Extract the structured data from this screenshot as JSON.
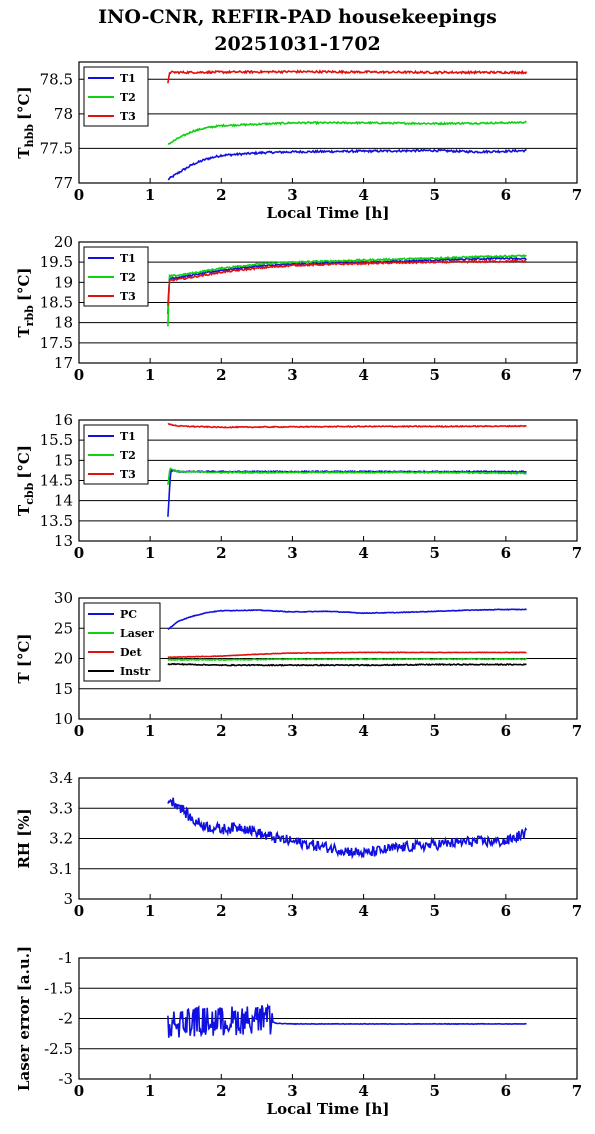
{
  "title": {
    "line1": "INO-CNR, REFIR-PAD housekeepings",
    "line2": "20251031-1702"
  },
  "colors": {
    "blue": "#1010e0",
    "green": "#10d010",
    "red": "#e01010",
    "black": "#000000"
  },
  "chart_data": [
    {
      "type": "line",
      "ylabel_main": "T",
      "ylabel_sub": "hbb",
      "ylabel_unit": "[°C]",
      "xlabel": "Local Time [h]",
      "xlim": [
        0,
        7
      ],
      "ylim": [
        77,
        78.75
      ],
      "xticks": [
        "0",
        "1",
        "2",
        "3",
        "4",
        "5",
        "6",
        "7"
      ],
      "yticks": [
        {
          "v": 77,
          "label": "77"
        },
        {
          "v": 77.5,
          "label": "77.5"
        },
        {
          "v": 78,
          "label": "78"
        },
        {
          "v": 78.5,
          "label": "78.5"
        }
      ],
      "legend": "top-left",
      "series": [
        {
          "name": "T1",
          "color": "blue",
          "noise": 0.015,
          "points": [
            [
              1.25,
              77.05
            ],
            [
              1.4,
              77.15
            ],
            [
              1.6,
              77.27
            ],
            [
              1.8,
              77.35
            ],
            [
              2.0,
              77.4
            ],
            [
              2.3,
              77.42
            ],
            [
              2.6,
              77.44
            ],
            [
              3.0,
              77.45
            ],
            [
              4.0,
              77.46
            ],
            [
              5.0,
              77.47
            ],
            [
              5.6,
              77.45
            ],
            [
              6.0,
              77.46
            ],
            [
              6.3,
              77.47
            ]
          ]
        },
        {
          "name": "T2",
          "color": "green",
          "noise": 0.012,
          "points": [
            [
              1.25,
              77.56
            ],
            [
              1.4,
              77.65
            ],
            [
              1.6,
              77.75
            ],
            [
              1.8,
              77.8
            ],
            [
              2.0,
              77.83
            ],
            [
              2.5,
              77.85
            ],
            [
              3.0,
              77.87
            ],
            [
              4.0,
              77.87
            ],
            [
              5.0,
              77.86
            ],
            [
              6.0,
              77.87
            ],
            [
              6.3,
              77.88
            ]
          ]
        },
        {
          "name": "T3",
          "color": "red",
          "noise": 0.015,
          "points": [
            [
              1.25,
              78.43
            ],
            [
              1.27,
              78.6
            ],
            [
              1.5,
              78.6
            ],
            [
              3.0,
              78.61
            ],
            [
              5.0,
              78.6
            ],
            [
              6.3,
              78.6
            ]
          ]
        }
      ]
    },
    {
      "type": "line",
      "ylabel_main": "T",
      "ylabel_sub": "rbb",
      "ylabel_unit": "[°C]",
      "xlabel": "",
      "xlim": [
        0,
        7
      ],
      "ylim": [
        17,
        20
      ],
      "xticks": [
        "0",
        "1",
        "2",
        "3",
        "4",
        "5",
        "6",
        "7"
      ],
      "yticks": [
        {
          "v": 17,
          "label": "17"
        },
        {
          "v": 17.5,
          "label": "17.5"
        },
        {
          "v": 18,
          "label": "18"
        },
        {
          "v": 18.5,
          "label": "18.5"
        },
        {
          "v": 19,
          "label": "19"
        },
        {
          "v": 19.5,
          "label": "19.5"
        },
        {
          "v": 20,
          "label": "20"
        }
      ],
      "legend": "top-left",
      "series": [
        {
          "name": "T1",
          "color": "blue",
          "noise": 0.02,
          "points": [
            [
              1.25,
              18.2
            ],
            [
              1.27,
              19.1
            ],
            [
              1.5,
              19.15
            ],
            [
              2.0,
              19.3
            ],
            [
              2.5,
              19.4
            ],
            [
              3.0,
              19.45
            ],
            [
              4.0,
              19.5
            ],
            [
              5.0,
              19.55
            ],
            [
              6.0,
              19.6
            ],
            [
              6.3,
              19.58
            ]
          ]
        },
        {
          "name": "T2",
          "color": "green",
          "noise": 0.02,
          "points": [
            [
              1.25,
              17.9
            ],
            [
              1.27,
              19.15
            ],
            [
              1.5,
              19.2
            ],
            [
              2.0,
              19.35
            ],
            [
              2.5,
              19.45
            ],
            [
              3.0,
              19.5
            ],
            [
              4.0,
              19.55
            ],
            [
              5.0,
              19.6
            ],
            [
              6.0,
              19.65
            ],
            [
              6.3,
              19.66
            ]
          ]
        },
        {
          "name": "T3",
          "color": "red",
          "noise": 0.02,
          "points": [
            [
              1.25,
              18.4
            ],
            [
              1.27,
              19.05
            ],
            [
              1.5,
              19.1
            ],
            [
              2.0,
              19.25
            ],
            [
              2.5,
              19.35
            ],
            [
              3.0,
              19.42
            ],
            [
              4.0,
              19.47
            ],
            [
              5.0,
              19.5
            ],
            [
              6.0,
              19.52
            ],
            [
              6.3,
              19.52
            ]
          ]
        }
      ]
    },
    {
      "type": "line",
      "ylabel_main": "T",
      "ylabel_sub": "cbb",
      "ylabel_unit": "[°C]",
      "xlabel": "",
      "xlim": [
        0,
        7
      ],
      "ylim": [
        13,
        16
      ],
      "xticks": [
        "0",
        "1",
        "2",
        "3",
        "4",
        "5",
        "6",
        "7"
      ],
      "yticks": [
        {
          "v": 13,
          "label": "13"
        },
        {
          "v": 13.5,
          "label": "13.5"
        },
        {
          "v": 14,
          "label": "14"
        },
        {
          "v": 14.5,
          "label": "14.5"
        },
        {
          "v": 15,
          "label": "15"
        },
        {
          "v": 15.5,
          "label": "15.5"
        },
        {
          "v": 16,
          "label": "16"
        }
      ],
      "legend": "top-left",
      "series": [
        {
          "name": "T1",
          "color": "blue",
          "noise": 0.015,
          "points": [
            [
              1.25,
              13.6
            ],
            [
              1.27,
              14.2
            ],
            [
              1.29,
              14.75
            ],
            [
              1.4,
              14.72
            ],
            [
              2.0,
              14.72
            ],
            [
              3.0,
              14.72
            ],
            [
              4.0,
              14.72
            ],
            [
              5.0,
              14.72
            ],
            [
              6.3,
              14.72
            ]
          ]
        },
        {
          "name": "T2",
          "color": "green",
          "noise": 0.015,
          "points": [
            [
              1.25,
              14.4
            ],
            [
              1.28,
              14.8
            ],
            [
              1.4,
              14.72
            ],
            [
              2.0,
              14.7
            ],
            [
              3.0,
              14.7
            ],
            [
              4.0,
              14.7
            ],
            [
              5.0,
              14.7
            ],
            [
              6.3,
              14.68
            ]
          ]
        },
        {
          "name": "T3",
          "color": "red",
          "noise": 0.012,
          "points": [
            [
              1.25,
              15.9
            ],
            [
              1.4,
              15.85
            ],
            [
              2.0,
              15.82
            ],
            [
              3.0,
              15.83
            ],
            [
              4.0,
              15.84
            ],
            [
              5.0,
              15.84
            ],
            [
              6.3,
              15.85
            ]
          ]
        }
      ]
    },
    {
      "type": "line",
      "ylabel_main": "T [°C]",
      "ylabel_sub": "",
      "ylabel_unit": "",
      "xlabel": "",
      "xlim": [
        0,
        7
      ],
      "ylim": [
        10,
        30
      ],
      "xticks": [
        "0",
        "1",
        "2",
        "3",
        "4",
        "5",
        "6",
        "7"
      ],
      "yticks": [
        {
          "v": 10,
          "label": "10"
        },
        {
          "v": 15,
          "label": "15"
        },
        {
          "v": 20,
          "label": "20"
        },
        {
          "v": 25,
          "label": "25"
        },
        {
          "v": 30,
          "label": "30"
        }
      ],
      "legend": "top-left",
      "series": [
        {
          "name": "PC",
          "color": "blue",
          "noise": 0.05,
          "points": [
            [
              1.25,
              24.8
            ],
            [
              1.4,
              26.2
            ],
            [
              1.6,
              27.0
            ],
            [
              1.8,
              27.6
            ],
            [
              2.0,
              27.9
            ],
            [
              2.5,
              28.0
            ],
            [
              3.0,
              27.7
            ],
            [
              3.5,
              27.8
            ],
            [
              4.0,
              27.5
            ],
            [
              4.5,
              27.6
            ],
            [
              5.0,
              27.8
            ],
            [
              5.5,
              28.0
            ],
            [
              6.0,
              28.1
            ],
            [
              6.3,
              28.1
            ]
          ]
        },
        {
          "name": "Laser",
          "color": "green",
          "noise": 0.08,
          "points": [
            [
              1.25,
              19.8
            ],
            [
              2.0,
              19.8
            ],
            [
              3.0,
              19.9
            ],
            [
              4.0,
              19.9
            ],
            [
              5.0,
              19.9
            ],
            [
              6.3,
              19.9
            ]
          ]
        },
        {
          "name": "Det",
          "color": "red",
          "noise": 0.04,
          "points": [
            [
              1.25,
              20.2
            ],
            [
              2.0,
              20.4
            ],
            [
              2.5,
              20.7
            ],
            [
              3.0,
              20.9
            ],
            [
              4.0,
              21.0
            ],
            [
              5.0,
              21.0
            ],
            [
              6.3,
              21.0
            ]
          ]
        },
        {
          "name": "Instr",
          "color": "black",
          "noise": 0.08,
          "points": [
            [
              1.25,
              19.1
            ],
            [
              2.0,
              18.9
            ],
            [
              3.0,
              18.9
            ],
            [
              4.0,
              18.9
            ],
            [
              5.0,
              19.0
            ],
            [
              6.3,
              19.0
            ]
          ]
        }
      ]
    },
    {
      "type": "line",
      "ylabel_main": "RH [%]",
      "ylabel_sub": "",
      "ylabel_unit": "",
      "xlabel": "",
      "xlim": [
        0,
        7
      ],
      "ylim": [
        3,
        3.4
      ],
      "xticks": [
        "0",
        "1",
        "2",
        "3",
        "4",
        "5",
        "6",
        "7"
      ],
      "yticks": [
        {
          "v": 3,
          "label": "3"
        },
        {
          "v": 3.1,
          "label": "3.1"
        },
        {
          "v": 3.2,
          "label": "3.2"
        },
        {
          "v": 3.3,
          "label": "3.3"
        },
        {
          "v": 3.4,
          "label": "3.4"
        }
      ],
      "legend": "",
      "series": [
        {
          "name": "",
          "color": "blue",
          "noise": 0.018,
          "points": [
            [
              1.25,
              3.33
            ],
            [
              1.4,
              3.31
            ],
            [
              1.6,
              3.26
            ],
            [
              1.8,
              3.24
            ],
            [
              2.0,
              3.23
            ],
            [
              2.3,
              3.24
            ],
            [
              2.6,
              3.21
            ],
            [
              3.0,
              3.19
            ],
            [
              3.5,
              3.17
            ],
            [
              4.0,
              3.15
            ],
            [
              4.5,
              3.17
            ],
            [
              5.0,
              3.18
            ],
            [
              5.5,
              3.19
            ],
            [
              6.0,
              3.19
            ],
            [
              6.3,
              3.22
            ]
          ]
        }
      ]
    },
    {
      "type": "line",
      "ylabel_main": "Laser error [a.u.]",
      "ylabel_sub": "",
      "ylabel_unit": "",
      "xlabel": "Local Time [h]",
      "xlim": [
        0,
        7
      ],
      "ylim": [
        -3,
        -1
      ],
      "xticks": [
        "0",
        "1",
        "2",
        "3",
        "4",
        "5",
        "6",
        "7"
      ],
      "yticks": [
        {
          "v": -3,
          "label": "-3"
        },
        {
          "v": -2.5,
          "label": "-2.5"
        },
        {
          "v": -2,
          "label": "-2"
        },
        {
          "v": -1.5,
          "label": "-1.5"
        },
        {
          "v": -1,
          "label": "-1"
        }
      ],
      "legend": "",
      "series": [
        {
          "name": "",
          "color": "blue",
          "noise": 0.004,
          "burst": [
            1.25,
            2.72,
            0.25
          ],
          "points": [
            [
              1.25,
              -2.1
            ],
            [
              1.5,
              -2.05
            ],
            [
              2.0,
              -2.05
            ],
            [
              2.5,
              -2.0
            ],
            [
              2.72,
              -2.05
            ],
            [
              2.76,
              -2.08
            ],
            [
              3.0,
              -2.09
            ],
            [
              4.0,
              -2.09
            ],
            [
              5.0,
              -2.09
            ],
            [
              6.3,
              -2.09
            ]
          ]
        }
      ]
    }
  ]
}
